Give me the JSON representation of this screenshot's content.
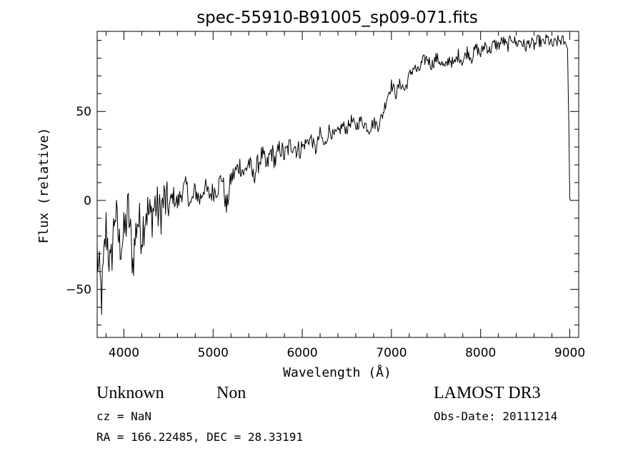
{
  "chart_data": {
    "type": "line",
    "title": "spec-55910-B91005_sp09-071.fits",
    "xlabel": "Wavelength (Å)",
    "ylabel": "Flux (relative)",
    "xlim": [
      3700,
      9100
    ],
    "ylim": [
      -77,
      95
    ],
    "x_ticks": [
      4000,
      5000,
      6000,
      7000,
      8000,
      9000
    ],
    "x_tick_labels": [
      "4000",
      "5000",
      "6000",
      "7000",
      "8000",
      "9000"
    ],
    "y_ticks": [
      -50,
      0,
      50
    ],
    "y_tick_labels": [
      "−50",
      "0",
      "50"
    ],
    "grid": false,
    "legend": "none",
    "series": [
      {
        "name": "flux",
        "color": "#000000",
        "x": [
          3700,
          3750,
          3800,
          3850,
          3900,
          3950,
          4000,
          4050,
          4100,
          4150,
          4200,
          4250,
          4300,
          4350,
          4400,
          4450,
          4500,
          4550,
          4600,
          4650,
          4700,
          4750,
          4800,
          4850,
          4900,
          4950,
          5000,
          5050,
          5100,
          5150,
          5200,
          5250,
          5300,
          5350,
          5400,
          5450,
          5500,
          5550,
          5600,
          5650,
          5700,
          5750,
          5800,
          5850,
          5900,
          5950,
          6000,
          6050,
          6100,
          6150,
          6200,
          6250,
          6300,
          6350,
          6400,
          6450,
          6500,
          6550,
          6600,
          6650,
          6700,
          6750,
          6800,
          6850,
          6900,
          6950,
          7000,
          7050,
          7100,
          7150,
          7200,
          7250,
          7300,
          7350,
          7400,
          7450,
          7500,
          7550,
          7600,
          7650,
          7700,
          7750,
          7800,
          7850,
          7900,
          7950,
          8000,
          8050,
          8100,
          8150,
          8200,
          8250,
          8300,
          8350,
          8400,
          8450,
          8500,
          8550,
          8600,
          8650,
          8700,
          8750,
          8800,
          8850,
          8900,
          8950,
          8975,
          8990,
          9000,
          9010
        ],
        "y": [
          -30,
          -55,
          -15,
          -40,
          -5,
          -25,
          -20,
          -5,
          -35,
          -10,
          -18,
          -5,
          -10,
          -2,
          -8,
          0,
          -5,
          3,
          -2,
          5,
          8,
          -3,
          6,
          0,
          8,
          3,
          5,
          7,
          14,
          -5,
          12,
          16,
          20,
          15,
          22,
          13,
          20,
          26,
          18,
          28,
          22,
          30,
          25,
          30,
          32,
          28,
          30,
          33,
          35,
          28,
          38,
          30,
          40,
          36,
          38,
          42,
          40,
          45,
          41,
          45,
          43,
          40,
          44,
          42,
          48,
          58,
          65,
          60,
          66,
          62,
          70,
          75,
          72,
          78,
          80,
          76,
          80,
          78,
          74,
          80,
          76,
          82,
          78,
          84,
          80,
          86,
          82,
          88,
          84,
          88,
          87,
          90,
          86,
          92,
          88,
          90,
          86,
          89,
          87,
          90,
          88,
          91,
          87,
          89,
          90,
          89,
          85,
          40,
          1,
          0
        ]
      }
    ]
  },
  "footer": {
    "object_class": "Unknown",
    "object_subclass": "Non",
    "cz": "cz = NaN",
    "coords": "RA = 166.22485, DEC =  28.33191",
    "survey": "LAMOST DR3",
    "obs_date": "Obs-Date: 20111214"
  }
}
